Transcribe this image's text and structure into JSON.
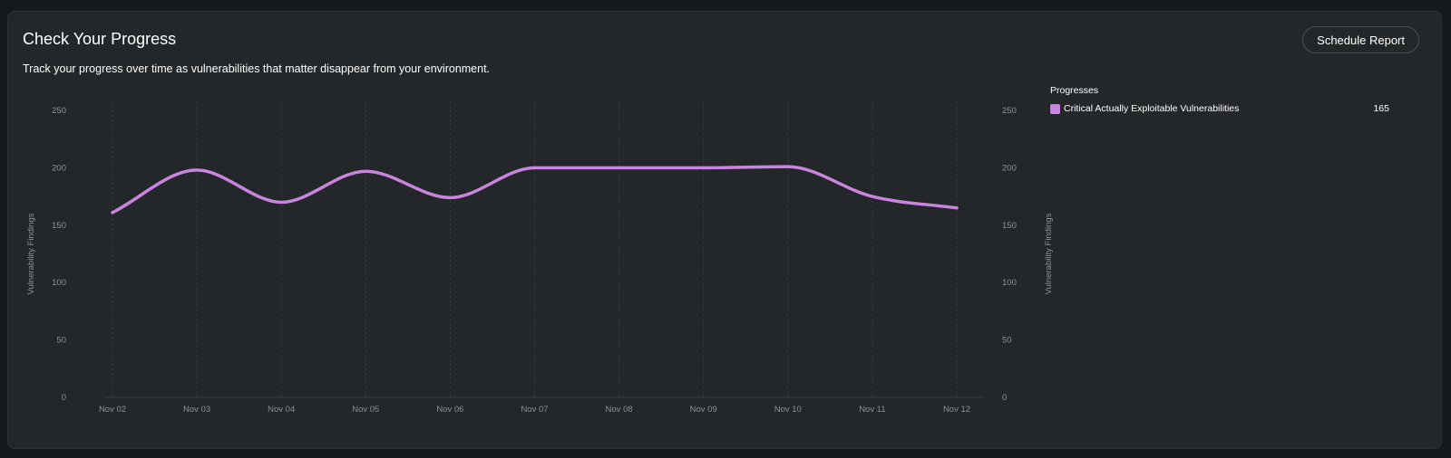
{
  "header": {
    "title": "Check Your Progress",
    "subtitle": "Track your progress over time as vulnerabilities that matter disappear from your environment.",
    "schedule_button": "Schedule Report"
  },
  "legend": {
    "title": "Progresses",
    "items": [
      {
        "label": "Critical Actually Exploitable Vulnerabilities",
        "value": "165",
        "color": "#c985de"
      }
    ]
  },
  "colors": {
    "line": "#c985de",
    "tick_text": "#8e9297",
    "grid": "#3a3e43",
    "axis": "#3a3e43"
  },
  "chart_data": {
    "type": "line",
    "title": "",
    "xlabel": "",
    "ylabel": "Vulnerability Findings",
    "ylabel_right": "Vulnerability Findings",
    "categories": [
      "Nov 02",
      "Nov 03",
      "Nov 04",
      "Nov 05",
      "Nov 06",
      "Nov 07",
      "Nov 08",
      "Nov 09",
      "Nov 10",
      "Nov 11",
      "Nov 12"
    ],
    "yticks": [
      0,
      50,
      100,
      150,
      200,
      250
    ],
    "ylim": [
      0,
      250
    ],
    "grid": "vertical-dashed",
    "series": [
      {
        "name": "Critical Actually Exploitable Vulnerabilities",
        "values": [
          161,
          198,
          170,
          197,
          174,
          200,
          200,
          200,
          201,
          175,
          165
        ]
      }
    ]
  }
}
